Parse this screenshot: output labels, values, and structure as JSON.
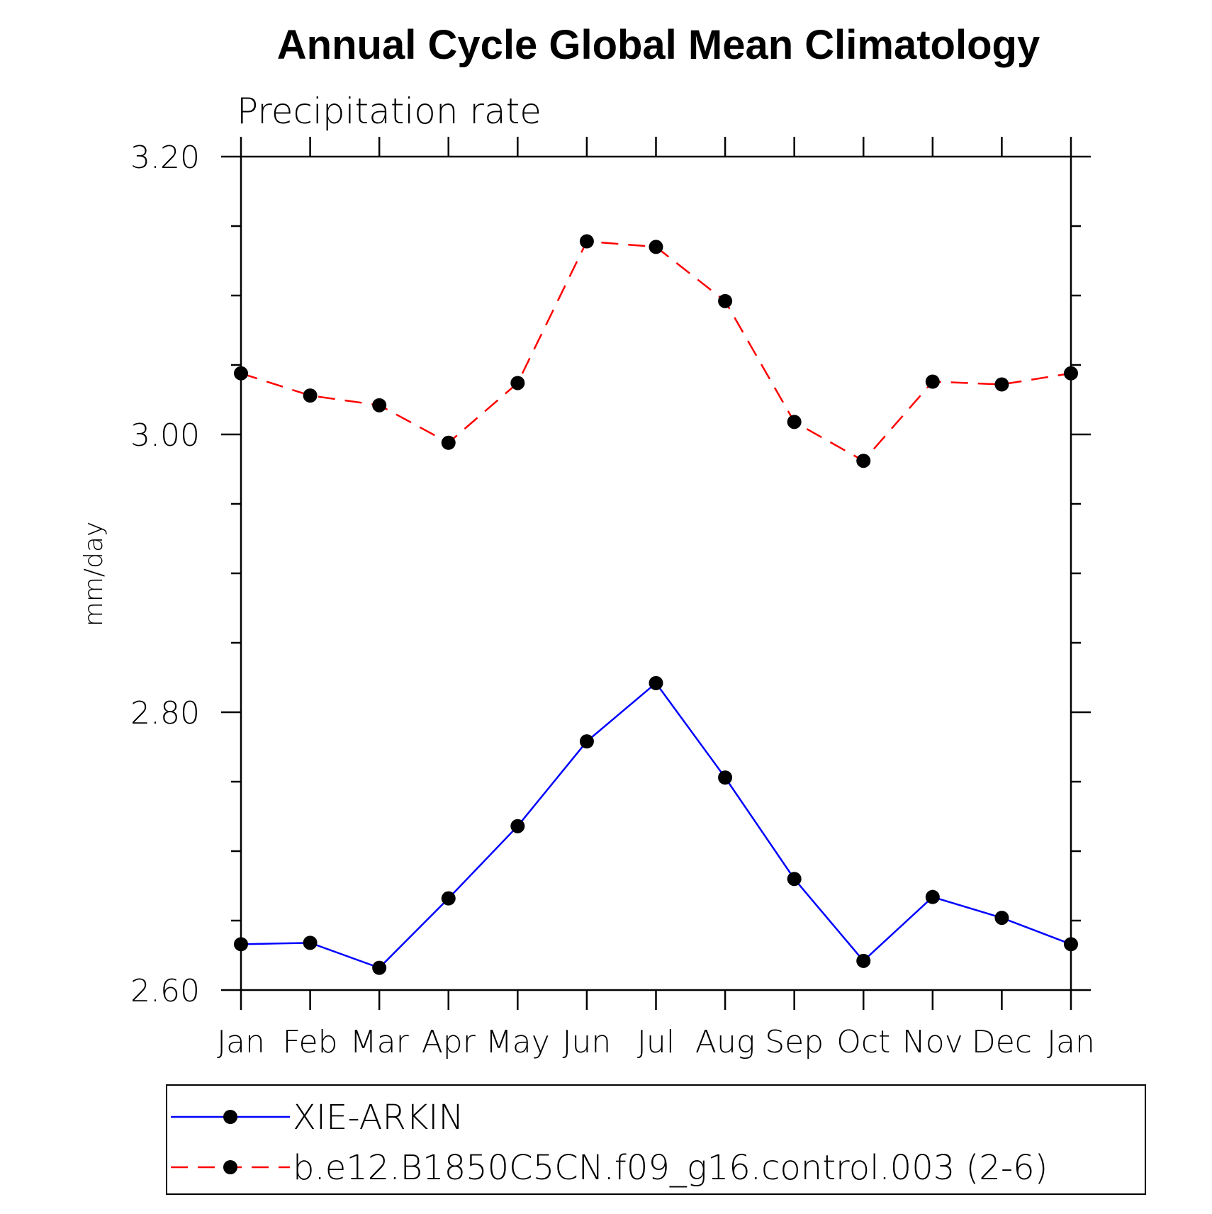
{
  "chart_data": {
    "type": "line",
    "title": "Annual Cycle Global Mean Climatology",
    "subtitle": "Precipitation rate",
    "ylabel": "mm/day",
    "xlabel": "",
    "categories": [
      "Jan",
      "Feb",
      "Mar",
      "Apr",
      "May",
      "Jun",
      "Jul",
      "Aug",
      "Sep",
      "Oct",
      "Nov",
      "Dec",
      "Jan"
    ],
    "ylim": [
      2.6,
      3.2
    ],
    "y_ticks": [
      "2.60",
      "2.80",
      "3.00",
      "3.20"
    ],
    "y_tick_values": [
      2.6,
      2.8,
      3.0,
      3.2
    ],
    "y_minor_step": 0.05,
    "grid": false,
    "legend_position": "bottom",
    "series": [
      {
        "name": "XIE-ARKIN",
        "color": "#0000ff",
        "style": "solid",
        "marker": "circle",
        "values": [
          2.633,
          2.634,
          2.616,
          2.666,
          2.718,
          2.779,
          2.821,
          2.753,
          2.68,
          2.621,
          2.667,
          2.652,
          2.633
        ]
      },
      {
        "name": "b.e12.B1850C5CN.f09_g16.control.003 (2-6)",
        "color": "#ff0000",
        "style": "dashed",
        "marker": "circle",
        "values": [
          3.044,
          3.028,
          3.021,
          2.994,
          3.037,
          3.139,
          3.135,
          3.096,
          3.009,
          2.981,
          3.038,
          3.036,
          3.044
        ]
      }
    ]
  }
}
